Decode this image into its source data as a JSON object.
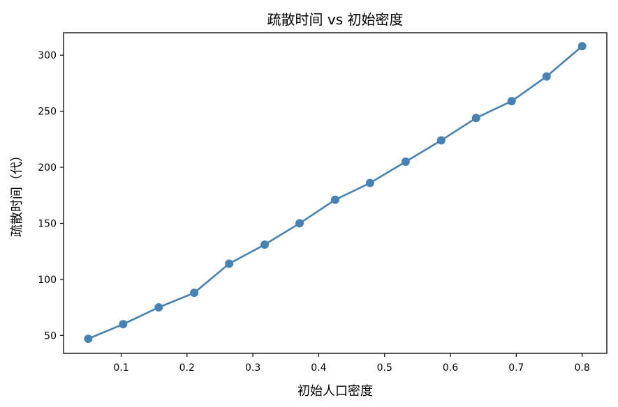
{
  "chart_data": {
    "type": "line",
    "title": "疏散时间 vs 初始密度",
    "xlabel": "初始人口密度",
    "ylabel": "疏散时间（代）",
    "xlim": [
      0.0125,
      0.8375
    ],
    "ylim": [
      34,
      320
    ],
    "xticks": [
      0.1,
      0.2,
      0.3,
      0.4,
      0.5,
      0.6,
      0.7,
      0.8
    ],
    "xtick_labels": [
      "0.1",
      "0.2",
      "0.3",
      "0.4",
      "0.5",
      "0.6",
      "0.7",
      "0.8"
    ],
    "yticks": [
      50,
      100,
      150,
      200,
      250,
      300
    ],
    "ytick_labels": [
      "50",
      "100",
      "150",
      "200",
      "250",
      "300"
    ],
    "grid": false,
    "legend": null,
    "line_color": "#4682b4",
    "x": [
      0.05,
      0.103,
      0.157,
      0.211,
      0.264,
      0.318,
      0.371,
      0.425,
      0.478,
      0.532,
      0.586,
      0.639,
      0.693,
      0.746,
      0.8
    ],
    "y": [
      47,
      60,
      75,
      88,
      114,
      131,
      150,
      171,
      186,
      205,
      224,
      244,
      259,
      281,
      308
    ]
  }
}
